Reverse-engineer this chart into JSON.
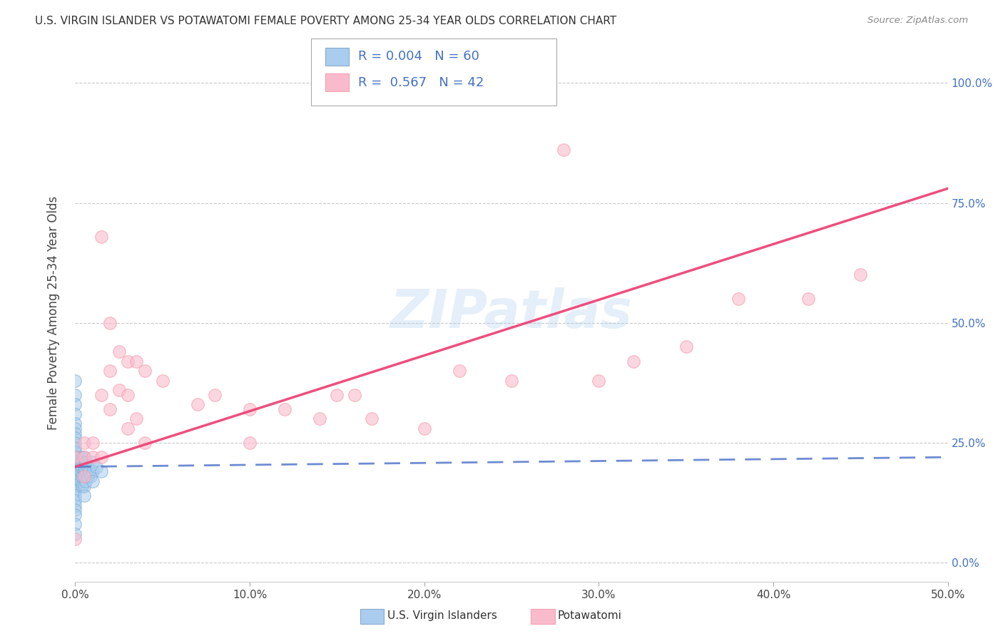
{
  "title": "U.S. VIRGIN ISLANDER VS POTAWATOMI FEMALE POVERTY AMONG 25-34 YEAR OLDS CORRELATION CHART",
  "source": "Source: ZipAtlas.com",
  "ylabel": "Female Poverty Among 25-34 Year Olds",
  "xmin": 0.0,
  "xmax": 0.5,
  "ymin": -0.04,
  "ymax": 1.08,
  "yticks": [
    0.0,
    0.25,
    0.5,
    0.75,
    1.0
  ],
  "ytick_labels": [
    "0.0%",
    "25.0%",
    "50.0%",
    "75.0%",
    "100.0%"
  ],
  "xticks": [
    0.0,
    0.1,
    0.2,
    0.3,
    0.4,
    0.5
  ],
  "xtick_labels": [
    "0.0%",
    "10.0%",
    "20.0%",
    "30.0%",
    "40.0%",
    "50.0%"
  ],
  "legend_labels": [
    "U.S. Virgin Islanders",
    "Potawatomi"
  ],
  "r_blue": "0.004",
  "n_blue": "60",
  "r_pink": "0.567",
  "n_pink": "42",
  "watermark": "ZIPatlas",
  "blue_scatter_color": "#7BAFD4",
  "pink_scatter_color": "#F4A7B0",
  "blue_line_color": "#5577CC",
  "pink_line_color": "#EE4477",
  "background_color": "#FFFFFF",
  "grid_color": "#BBBBBB",
  "blue_points_x": [
    0.0,
    0.0,
    0.0,
    0.0,
    0.0,
    0.0,
    0.0,
    0.0,
    0.0,
    0.0,
    0.0,
    0.0,
    0.0,
    0.0,
    0.0,
    0.0,
    0.0,
    0.0,
    0.0,
    0.0,
    0.0,
    0.0,
    0.0,
    0.0,
    0.0,
    0.0,
    0.0,
    0.0,
    0.0,
    0.0,
    0.002,
    0.002,
    0.002,
    0.003,
    0.003,
    0.003,
    0.003,
    0.004,
    0.004,
    0.004,
    0.004,
    0.004,
    0.005,
    0.005,
    0.005,
    0.005,
    0.005,
    0.005,
    0.006,
    0.006,
    0.006,
    0.007,
    0.007,
    0.008,
    0.009,
    0.01,
    0.01,
    0.01,
    0.012,
    0.015
  ],
  "blue_points_y": [
    0.38,
    0.35,
    0.33,
    0.31,
    0.29,
    0.28,
    0.27,
    0.26,
    0.25,
    0.24,
    0.23,
    0.22,
    0.21,
    0.2,
    0.2,
    0.19,
    0.18,
    0.18,
    0.17,
    0.17,
    0.16,
    0.16,
    0.15,
    0.14,
    0.13,
    0.12,
    0.11,
    0.1,
    0.08,
    0.06,
    0.22,
    0.2,
    0.18,
    0.21,
    0.2,
    0.19,
    0.17,
    0.22,
    0.21,
    0.2,
    0.18,
    0.16,
    0.22,
    0.2,
    0.19,
    0.18,
    0.16,
    0.14,
    0.21,
    0.19,
    0.17,
    0.2,
    0.18,
    0.19,
    0.18,
    0.21,
    0.19,
    0.17,
    0.2,
    0.19
  ],
  "pink_points_x": [
    0.0,
    0.0,
    0.005,
    0.005,
    0.005,
    0.01,
    0.01,
    0.015,
    0.015,
    0.015,
    0.02,
    0.02,
    0.02,
    0.025,
    0.025,
    0.03,
    0.03,
    0.03,
    0.035,
    0.035,
    0.04,
    0.04,
    0.05,
    0.07,
    0.08,
    0.1,
    0.1,
    0.12,
    0.14,
    0.15,
    0.16,
    0.17,
    0.2,
    0.22,
    0.25,
    0.28,
    0.3,
    0.32,
    0.35,
    0.38,
    0.42,
    0.45
  ],
  "pink_points_y": [
    0.05,
    0.22,
    0.25,
    0.22,
    0.18,
    0.25,
    0.22,
    0.68,
    0.35,
    0.22,
    0.5,
    0.4,
    0.32,
    0.44,
    0.36,
    0.42,
    0.35,
    0.28,
    0.42,
    0.3,
    0.4,
    0.25,
    0.38,
    0.33,
    0.35,
    0.32,
    0.25,
    0.32,
    0.3,
    0.35,
    0.35,
    0.3,
    0.28,
    0.4,
    0.38,
    0.86,
    0.38,
    0.42,
    0.45,
    0.55,
    0.55,
    0.6
  ],
  "pink_line_x0": 0.0,
  "pink_line_y0": 0.2,
  "pink_line_x1": 0.5,
  "pink_line_y1": 0.78,
  "blue_line_x0": 0.0,
  "blue_line_y0": 0.2,
  "blue_line_x1": 0.5,
  "blue_line_y1": 0.22
}
